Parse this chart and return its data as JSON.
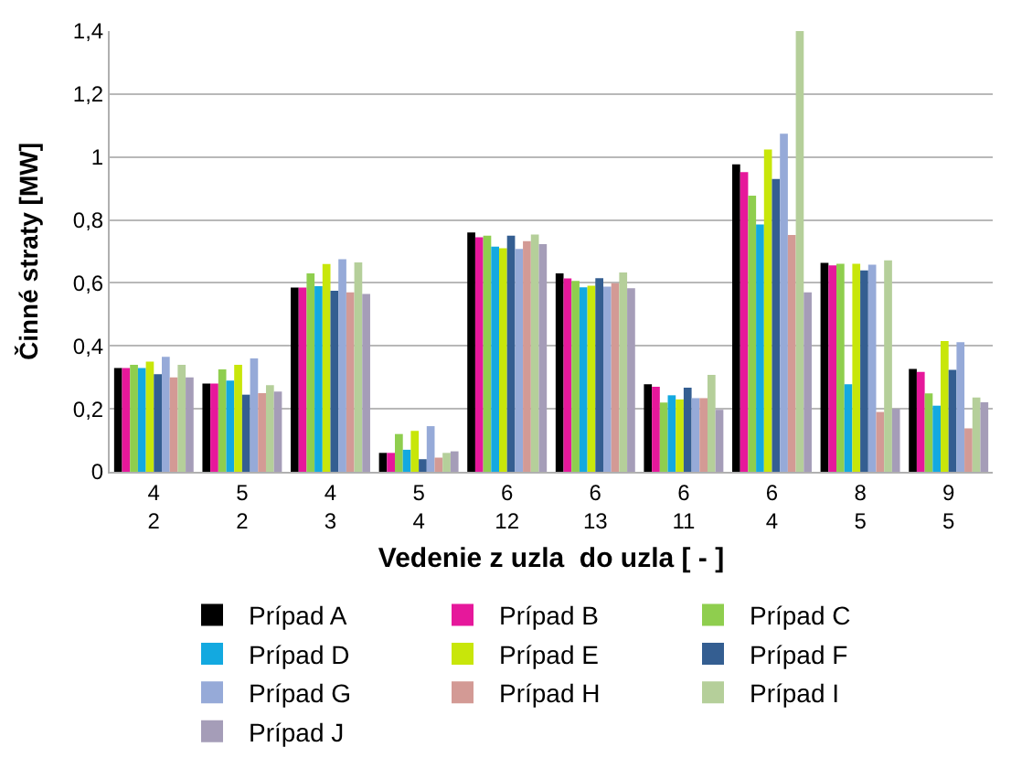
{
  "chart_data": {
    "type": "bar",
    "xlabel": "Vedenie z uzla  do uzla [ - ]",
    "ylabel": "Činné straty [MW]",
    "categories": [
      "4\n2",
      "5\n2",
      "4\n3",
      "5\n4",
      "6\n12",
      "6\n13",
      "6\n11",
      "6\n4",
      "8\n5",
      "9\n5"
    ],
    "series": [
      {
        "name": "Prípad A",
        "color": "#000000",
        "values": [
          0.33,
          0.28,
          0.585,
          0.06,
          0.76,
          0.63,
          0.278,
          0.977,
          0.664,
          0.327
        ]
      },
      {
        "name": "Prípad B",
        "color": "#e6189b",
        "values": [
          0.33,
          0.28,
          0.585,
          0.06,
          0.745,
          0.614,
          0.27,
          0.952,
          0.656,
          0.317
        ]
      },
      {
        "name": "Prípad C",
        "color": "#8fce4e",
        "values": [
          0.34,
          0.325,
          0.63,
          0.12,
          0.75,
          0.606,
          0.22,
          0.877,
          0.661,
          0.249
        ]
      },
      {
        "name": "Prípad D",
        "color": "#13a9e0",
        "values": [
          0.33,
          0.29,
          0.59,
          0.07,
          0.715,
          0.586,
          0.243,
          0.786,
          0.278,
          0.21
        ]
      },
      {
        "name": "Prípad E",
        "color": "#c8e60a",
        "values": [
          0.35,
          0.34,
          0.66,
          0.13,
          0.71,
          0.591,
          0.23,
          1.024,
          0.661,
          0.415
        ]
      },
      {
        "name": "Prípad F",
        "color": "#345e91",
        "values": [
          0.31,
          0.245,
          0.575,
          0.04,
          0.75,
          0.615,
          0.267,
          0.93,
          0.64,
          0.324
        ]
      },
      {
        "name": "Prípad G",
        "color": "#96aad8",
        "values": [
          0.365,
          0.36,
          0.675,
          0.145,
          0.708,
          0.588,
          0.234,
          1.074,
          0.658,
          0.412
        ]
      },
      {
        "name": "Prípad H",
        "color": "#d39a95",
        "values": [
          0.3,
          0.25,
          0.57,
          0.045,
          0.733,
          0.599,
          0.234,
          0.752,
          0.19,
          0.138
        ]
      },
      {
        "name": "Prípad I",
        "color": "#b5cf9a",
        "values": [
          0.34,
          0.275,
          0.665,
          0.06,
          0.754,
          0.633,
          0.308,
          1.4,
          0.672,
          0.236
        ]
      },
      {
        "name": "Prípad J",
        "color": "#a59db8",
        "values": [
          0.3,
          0.255,
          0.565,
          0.065,
          0.723,
          0.583,
          0.197,
          0.57,
          0.2,
          0.221
        ]
      }
    ],
    "ylim": [
      0,
      1.4
    ],
    "yticks": [
      0,
      {
        "value": 0.2,
        "label": "0,2"
      },
      {
        "value": 0.4,
        "label": "0,4"
      },
      {
        "value": 0.6,
        "label": "0,6"
      },
      {
        "value": 0.8,
        "label": "0,8"
      },
      1,
      {
        "value": 1.2,
        "label": "1,2"
      },
      {
        "value": 1.4,
        "label": "1,4"
      }
    ],
    "grid": "y",
    "legend": "bottom"
  }
}
